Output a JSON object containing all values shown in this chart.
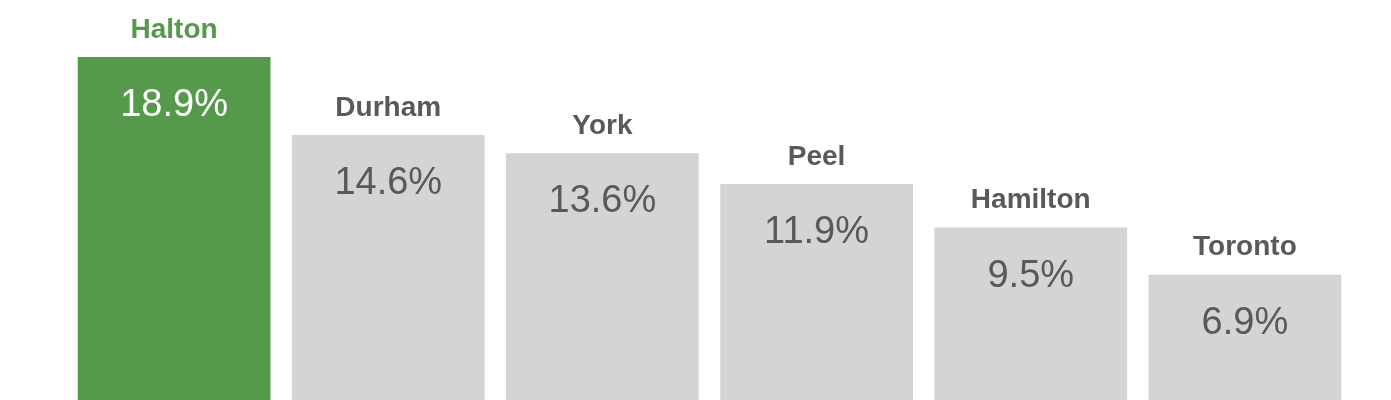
{
  "chart_data": {
    "type": "bar",
    "categories": [
      "Halton",
      "Durham",
      "York",
      "Peel",
      "Hamilton",
      "Toronto"
    ],
    "values": [
      18.9,
      14.6,
      13.6,
      11.9,
      9.5,
      6.9
    ],
    "value_labels": [
      "18.9%",
      "14.6%",
      "13.6%",
      "11.9%",
      "9.5%",
      "6.9%"
    ],
    "colors": [
      "#559a4b",
      "#d4d4d4",
      "#d4d4d4",
      "#d4d4d4",
      "#d4d4d4",
      "#d4d4d4"
    ],
    "tick_labels": false
  }
}
